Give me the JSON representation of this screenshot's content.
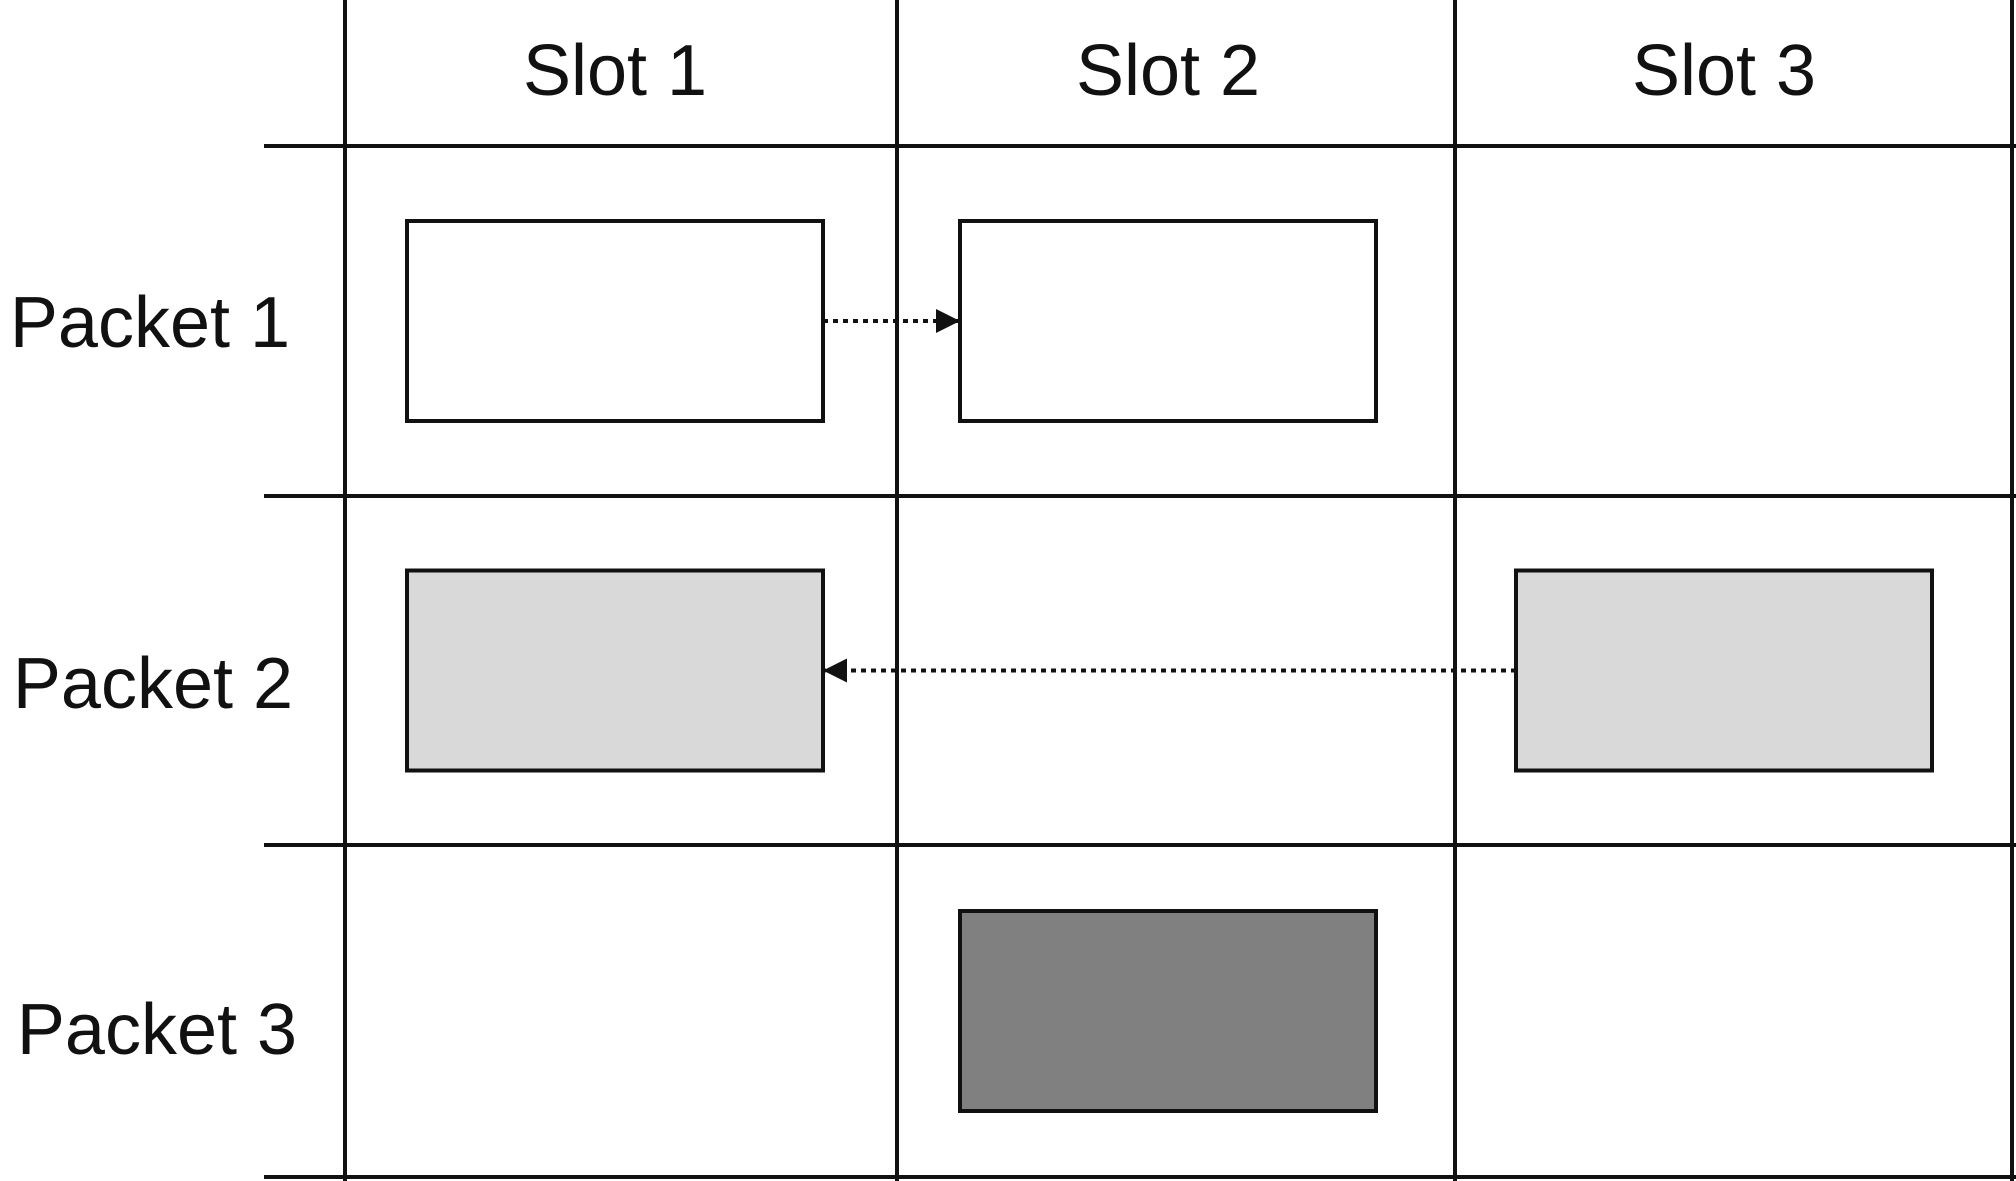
{
  "slots": [
    "Slot 1",
    "Slot 2",
    "Slot 3"
  ],
  "packets": [
    "Packet 1",
    "Packet 2",
    "Packet 3"
  ],
  "colors": {
    "lines": "#111111",
    "empty_fill": "#ffffff",
    "light_gray_fill": "#d9d9d9",
    "dark_gray_fill": "#808080"
  },
  "cells": [
    {
      "packet": "Packet 1",
      "slot": "Slot 1",
      "fill": "empty_fill"
    },
    {
      "packet": "Packet 1",
      "slot": "Slot 2",
      "fill": "empty_fill"
    },
    {
      "packet": "Packet 2",
      "slot": "Slot 1",
      "fill": "light_gray_fill"
    },
    {
      "packet": "Packet 2",
      "slot": "Slot 3",
      "fill": "light_gray_fill"
    },
    {
      "packet": "Packet 3",
      "slot": "Slot 2",
      "fill": "dark_gray_fill"
    }
  ],
  "transfers": [
    {
      "packet": "Packet 1",
      "from": "Slot 1",
      "to": "Slot 2"
    },
    {
      "packet": "Packet 2",
      "from": "Slot 3",
      "to": "Slot 1"
    }
  ]
}
